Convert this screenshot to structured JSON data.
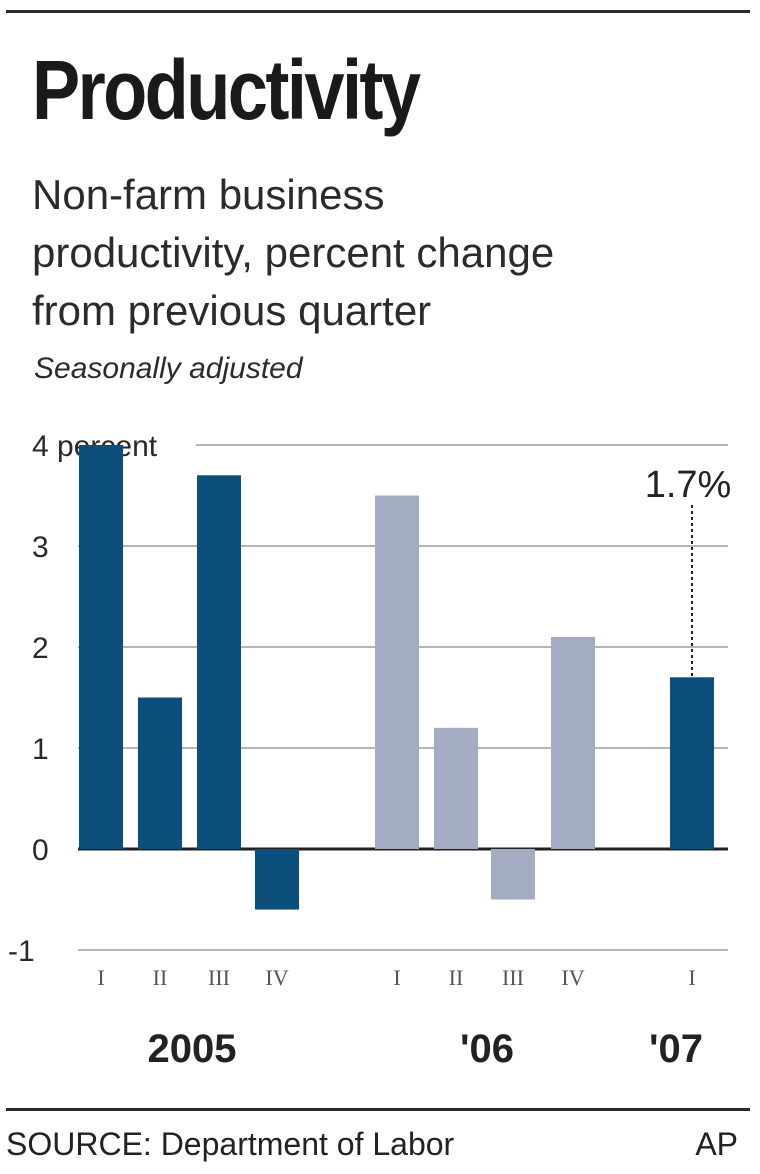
{
  "header": {
    "title": "Productivity",
    "subtitle_lines": [
      "Non-farm business",
      "productivity, percent change",
      "from previous quarter"
    ],
    "note": "Seasonally adjusted"
  },
  "chart_data": {
    "type": "bar",
    "title": "Productivity",
    "subtitle": "Non-farm business productivity, percent change from previous quarter",
    "ylabel": "4 percent",
    "ylim": [
      -1,
      4
    ],
    "yticks": [
      4,
      3,
      2,
      1,
      0,
      -1
    ],
    "ytick_labels": [
      "4 percent",
      "3",
      "2",
      "1",
      "0",
      "-1"
    ],
    "grid": true,
    "categories": [
      "I",
      "II",
      "III",
      "IV",
      "I",
      "II",
      "III",
      "IV",
      "I"
    ],
    "groups": [
      {
        "label": "2005",
        "categories": [
          "I",
          "II",
          "III",
          "IV"
        ],
        "values": [
          4.0,
          1.5,
          3.7,
          -0.6
        ],
        "color": "#0d4f7c"
      },
      {
        "label": "'06",
        "categories": [
          "I",
          "II",
          "III",
          "IV"
        ],
        "values": [
          3.5,
          1.2,
          -0.5,
          2.1
        ],
        "color": "#a3acc2"
      },
      {
        "label": "'07",
        "categories": [
          "I"
        ],
        "values": [
          1.7
        ],
        "color": "#0d4f7c"
      }
    ],
    "annotations": [
      {
        "text": "1.7%",
        "group": 2,
        "index": 0
      }
    ]
  },
  "footer": {
    "source": "SOURCE: Department of Labor",
    "credit": "AP"
  }
}
